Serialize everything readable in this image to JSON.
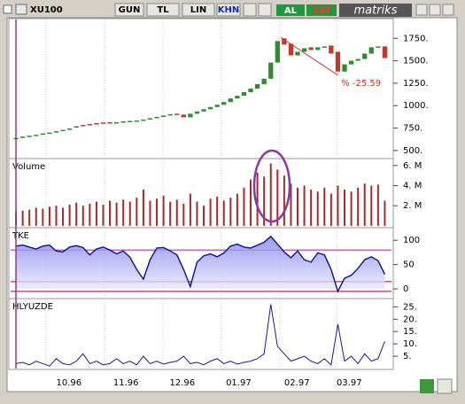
{
  "toolbar": {
    "symbol": "XU100",
    "buttons": [
      "GUN",
      "TL",
      "LIN",
      "KHN"
    ],
    "buy": "AL",
    "sell": "SAT",
    "logo": "matriks"
  },
  "chart_data": [
    {
      "type": "candlestick",
      "up_color": "#2e8b2e",
      "down_color": "#c0392b",
      "xlim": [
        -0.8,
        56
      ],
      "ylim": [
        420,
        1960
      ],
      "yticks": [
        {
          "value": 500,
          "label": "500."
        },
        {
          "value": 750,
          "label": "750."
        },
        {
          "value": 1000,
          "label": "1000."
        },
        {
          "value": 1250,
          "label": "1250."
        },
        {
          "value": 1500,
          "label": "1500."
        },
        {
          "value": 1750,
          "label": "1750."
        }
      ],
      "open": [
        630,
        640,
        655,
        665,
        675,
        690,
        700,
        715,
        730,
        770,
        785,
        795,
        805,
        812,
        815,
        805,
        820,
        825,
        835,
        840,
        845,
        860,
        875,
        890,
        910,
        900,
        870,
        910,
        935,
        960,
        985,
        1010,
        1040,
        1080,
        1110,
        1150,
        1190,
        1240,
        1300,
        1480,
        1750,
        1690,
        1560,
        1600,
        1650,
        1620,
        1650,
        1670,
        1600,
        1380,
        1460,
        1500,
        1520,
        1580,
        1650,
        1660
      ],
      "close": [
        640,
        655,
        665,
        675,
        690,
        700,
        715,
        730,
        745,
        760,
        775,
        790,
        800,
        810,
        805,
        815,
        825,
        830,
        835,
        845,
        860,
        875,
        890,
        905,
        895,
        870,
        910,
        935,
        960,
        985,
        1010,
        1040,
        1080,
        1110,
        1150,
        1190,
        1240,
        1300,
        1480,
        1720,
        1680,
        1560,
        1600,
        1640,
        1620,
        1650,
        1660,
        1580,
        1380,
        1460,
        1500,
        1520,
        1580,
        1650,
        1660,
        1530
      ],
      "trendline": {
        "x": [
          39.5,
          48
        ],
        "y": [
          1760,
          1340
        ],
        "color": "#c0392b"
      },
      "annotation": {
        "text": "% -25.59",
        "x": 48.5,
        "y": 1250
      }
    },
    {
      "type": "bar",
      "title": "Volume",
      "color": "#a52a2a",
      "xlim": [
        -0.8,
        56
      ],
      "ylim": [
        -0.1,
        6.6
      ],
      "yticks": [
        {
          "value": 2,
          "label": "2. M"
        },
        {
          "value": 4,
          "label": "4. M"
        },
        {
          "value": 6,
          "label": "6. M"
        }
      ],
      "values": [
        1.4,
        1.5,
        1.6,
        1.8,
        1.7,
        1.9,
        2.0,
        1.8,
        2.1,
        2.3,
        2.0,
        2.2,
        2.4,
        2.1,
        2.5,
        2.3,
        2.6,
        2.4,
        2.8,
        3.6,
        2.5,
        2.7,
        3.0,
        2.4,
        2.6,
        2.2,
        3.2,
        2.4,
        2.0,
        2.7,
        2.9,
        2.5,
        2.8,
        3.2,
        3.8,
        4.6,
        5.3,
        4.9,
        6.2,
        5.6,
        5.0,
        4.2,
        3.8,
        4.0,
        3.6,
        3.4,
        3.8,
        3.2,
        4.0,
        3.6,
        3.4,
        3.8,
        4.2,
        4.0,
        4.1,
        2.5
      ]
    },
    {
      "type": "area",
      "title": "TKE",
      "color": "#1a1a8c",
      "xlim": [
        -0.8,
        56
      ],
      "ylim": [
        -18,
        124
      ],
      "yticks": [
        0,
        50,
        100
      ],
      "levels": [
        80,
        15,
        -5
      ],
      "level_colors": [
        "#b03aa0",
        "#d02050",
        "#d02050"
      ],
      "values": [
        88,
        90,
        86,
        82,
        88,
        90,
        78,
        76,
        86,
        89,
        85,
        70,
        82,
        86,
        80,
        72,
        78,
        65,
        40,
        20,
        60,
        84,
        85,
        78,
        70,
        40,
        5,
        55,
        68,
        72,
        66,
        74,
        88,
        92,
        86,
        84,
        90,
        96,
        108,
        92,
        76,
        64,
        78,
        60,
        55,
        74,
        70,
        40,
        -5,
        22,
        28,
        42,
        60,
        66,
        58,
        30
      ]
    },
    {
      "type": "line",
      "title": "HLYUZDE",
      "color": "#1a1a8c",
      "xlim": [
        -0.8,
        56
      ],
      "ylim": [
        0,
        28
      ],
      "yticks": [
        {
          "value": 5,
          "label": "5."
        },
        {
          "value": 10,
          "label": "10."
        },
        {
          "value": 15,
          "label": "15."
        },
        {
          "value": 20,
          "label": "20."
        },
        {
          "value": 25,
          "label": "25."
        }
      ],
      "xticks": [
        {
          "value": 7.9,
          "label": "10.96"
        },
        {
          "value": 16.4,
          "label": "11.96"
        },
        {
          "value": 24.8,
          "label": "12.96"
        },
        {
          "value": 33.2,
          "label": "01.97"
        },
        {
          "value": 41.9,
          "label": "02.97"
        },
        {
          "value": 49.7,
          "label": "03.97"
        }
      ],
      "values": [
        2,
        2.5,
        1.5,
        3,
        2,
        1,
        4,
        2,
        1.5,
        3,
        6,
        2,
        3,
        1.5,
        2,
        4,
        2,
        3,
        1.5,
        5,
        2,
        3,
        1.8,
        2.5,
        3,
        5,
        2,
        2.5,
        1.5,
        3,
        4,
        2,
        3,
        1.8,
        2.5,
        3,
        4,
        6,
        26,
        9,
        6,
        3,
        4,
        5,
        3,
        2,
        4,
        1.5,
        18,
        3,
        5,
        2,
        6,
        3,
        4,
        11
      ]
    }
  ]
}
